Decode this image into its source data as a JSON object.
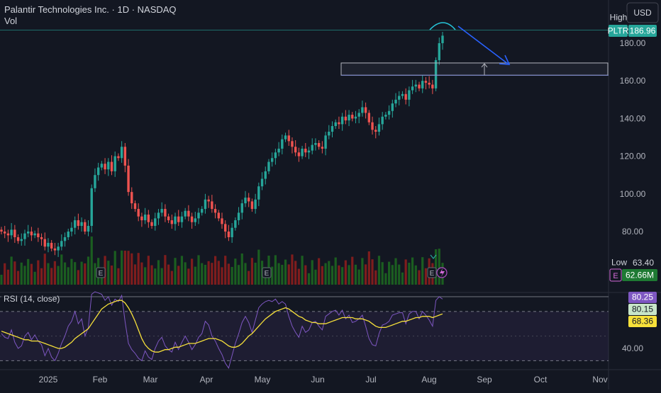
{
  "header": {
    "symbol_line": "Palantir Technologies Inc. · 1D · NASDAQ",
    "volume_label": "Vol",
    "currency": "USD"
  },
  "price_scale": {
    "badges": {
      "high_label": "High",
      "symbol": "PLTR",
      "last_price": "186.96",
      "low_label": "Low",
      "low_value": "63.40",
      "volume_value": "62.66M",
      "earnings_icon": "earnings-e-icon"
    }
  },
  "rsi": {
    "label": "RSI (14, close)",
    "badges": [
      "80.25",
      "80.15",
      "68.36"
    ],
    "ticks": [
      "40.00"
    ]
  },
  "colors": {
    "background": "#131722",
    "up": "#26a69a",
    "down": "#ef5350",
    "volume_up": "#1b5e20",
    "volume_down": "#7f1d1d",
    "rsi_line": "#7e57c2",
    "rsi_ma": "#f7e13a",
    "annotation_blue": "#2962ff"
  },
  "chart_data": [
    {
      "type": "candlestick",
      "title": "Palantir Technologies Inc. · 1D · NASDAQ",
      "ylim": [
        58,
        198
      ],
      "y_ticks": [
        80,
        100,
        120,
        140,
        160,
        180
      ],
      "x_tick_labels": [
        "2025",
        "Feb",
        "Mar",
        "Apr",
        "May",
        "Jun",
        "Jul",
        "Aug",
        "Sep",
        "Oct",
        "Nov"
      ],
      "high": 186.96,
      "low": 63.4,
      "last_volume": "62.66M",
      "close_series": [
        80,
        79,
        78,
        81,
        77,
        75,
        76,
        79,
        80,
        78,
        79,
        77,
        76,
        72,
        74,
        71,
        70,
        72,
        75,
        77,
        80,
        82,
        86,
        83,
        85,
        80,
        83,
        103,
        110,
        114,
        116,
        113,
        117,
        112,
        120,
        119,
        125,
        115,
        101,
        95,
        92,
        88,
        86,
        89,
        85,
        83,
        87,
        90,
        92,
        88,
        86,
        84,
        88,
        85,
        88,
        91,
        88,
        85,
        87,
        90,
        92,
        97,
        96,
        92,
        90,
        87,
        84,
        80,
        77,
        82,
        86,
        90,
        95,
        98,
        96,
        92,
        97,
        104,
        108,
        112,
        117,
        119,
        122,
        124,
        129,
        131,
        128,
        125,
        122,
        120,
        124,
        122,
        123,
        126,
        127,
        125,
        124,
        131,
        133,
        136,
        138,
        137,
        141,
        139,
        142,
        140,
        141,
        143,
        146,
        143,
        138,
        134,
        133,
        137,
        141,
        142,
        144,
        148,
        150,
        152,
        153,
        150,
        155,
        157,
        158,
        156,
        160,
        159,
        158,
        156,
        171,
        180,
        184
      ],
      "annotations": {
        "resistance_zone": [
          163,
          169.5
        ],
        "support_line": 163,
        "top_line": 186.96,
        "projection": "arrow down-right from the high toward the zone"
      }
    },
    {
      "type": "line",
      "title": "RSI (14, close)",
      "ylim": [
        20,
        90
      ],
      "bands": [
        30,
        70
      ],
      "rsi_value": 80.25,
      "rsi_ma_value": 68.36,
      "rsi_series": [
        52,
        49,
        48,
        55,
        45,
        40,
        42,
        50,
        53,
        47,
        51,
        46,
        43,
        34,
        40,
        33,
        30,
        36,
        44,
        50,
        58,
        62,
        70,
        60,
        64,
        50,
        57,
        84,
        86,
        85,
        84,
        79,
        82,
        75,
        80,
        78,
        83,
        62,
        44,
        39,
        36,
        32,
        30,
        38,
        33,
        31,
        40,
        46,
        49,
        42,
        39,
        37,
        45,
        39,
        45,
        50,
        45,
        39,
        43,
        49,
        52,
        62,
        59,
        50,
        46,
        40,
        35,
        28,
        24,
        34,
        44,
        52,
        61,
        66,
        61,
        53,
        63,
        73,
        76,
        78,
        79,
        78,
        80,
        76,
        78,
        76,
        66,
        58,
        53,
        49,
        58,
        53,
        55,
        61,
        62,
        58,
        55,
        66,
        68,
        70,
        71,
        67,
        71,
        64,
        67,
        61,
        62,
        64,
        67,
        58,
        48,
        43,
        42,
        52,
        59,
        60,
        62,
        67,
        68,
        69,
        69,
        60,
        68,
        70,
        70,
        64,
        70,
        67,
        63,
        58,
        79,
        82,
        80
      ],
      "rsi_ma_series": [
        54,
        53,
        52,
        51,
        50,
        49,
        48,
        47,
        47,
        46,
        46,
        46,
        45,
        44,
        43,
        42,
        41,
        40,
        40,
        41,
        43,
        45,
        48,
        50,
        52,
        54,
        56,
        60,
        64,
        68,
        72,
        74,
        76,
        77,
        78,
        79,
        79,
        77,
        73,
        68,
        62,
        55,
        48,
        43,
        40,
        38,
        37,
        37,
        38,
        39,
        39,
        40,
        41,
        41,
        42,
        43,
        44,
        44,
        44,
        45,
        46,
        47,
        48,
        48,
        48,
        47,
        46,
        44,
        42,
        41,
        41,
        42,
        44,
        47,
        50,
        52,
        55,
        58,
        61,
        64,
        66,
        68,
        70,
        71,
        72,
        73,
        72,
        70,
        68,
        66,
        65,
        63,
        62,
        61,
        61,
        60,
        60,
        60,
        61,
        62,
        63,
        64,
        65,
        65,
        65,
        65,
        64,
        64,
        64,
        63,
        62,
        60,
        58,
        57,
        57,
        57,
        58,
        59,
        60,
        61,
        62,
        62,
        63,
        64,
        65,
        65,
        66,
        66,
        66,
        65,
        66,
        67,
        68
      ]
    }
  ]
}
